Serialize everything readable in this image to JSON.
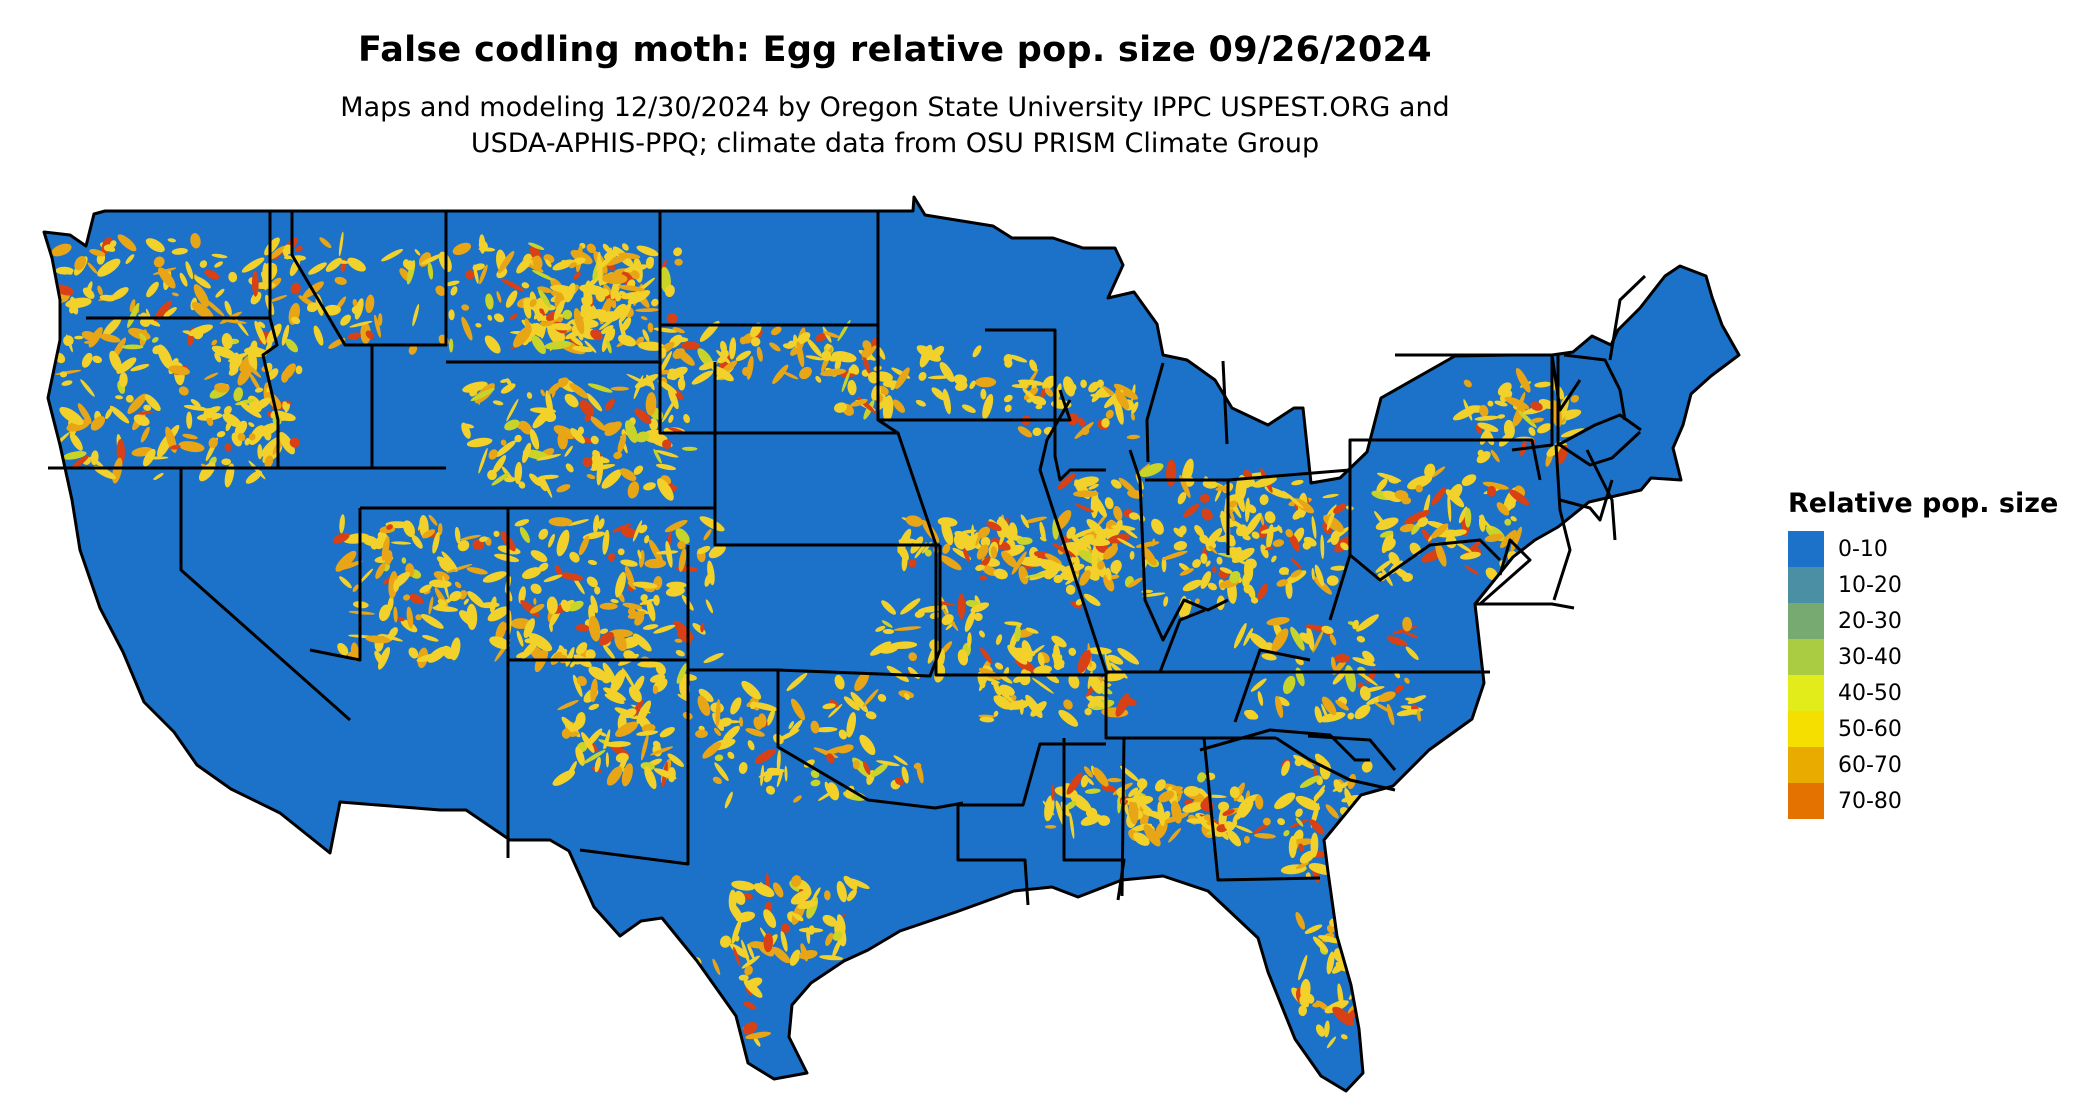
{
  "title": "False codling moth: Egg relative pop. size 09/26/2024",
  "subtitle_lines": [
    "Maps and modeling 12/30/2024 by Oregon State University IPPC USPEST.ORG and",
    "USDA-APHIS-PPQ; climate data from OSU PRISM Climate Group"
  ],
  "map": {
    "region": "Contiguous United States",
    "base_color": "#1c72c8",
    "border_color": "#000000",
    "hotspot_colors": [
      "#f2d22a",
      "#e8a516",
      "#d84016",
      "#c8d42a"
    ]
  },
  "legend": {
    "title": "Relative pop. size",
    "items": [
      {
        "label": "0-10",
        "color": "#1c72c8"
      },
      {
        "label": "10-20",
        "color": "#4a8fa4"
      },
      {
        "label": "20-30",
        "color": "#76aa70"
      },
      {
        "label": "30-40",
        "color": "#a9cc42"
      },
      {
        "label": "40-50",
        "color": "#e2ec1a"
      },
      {
        "label": "50-60",
        "color": "#f4df00"
      },
      {
        "label": "60-70",
        "color": "#eaab00"
      },
      {
        "label": "70-80",
        "color": "#e47200"
      }
    ]
  }
}
